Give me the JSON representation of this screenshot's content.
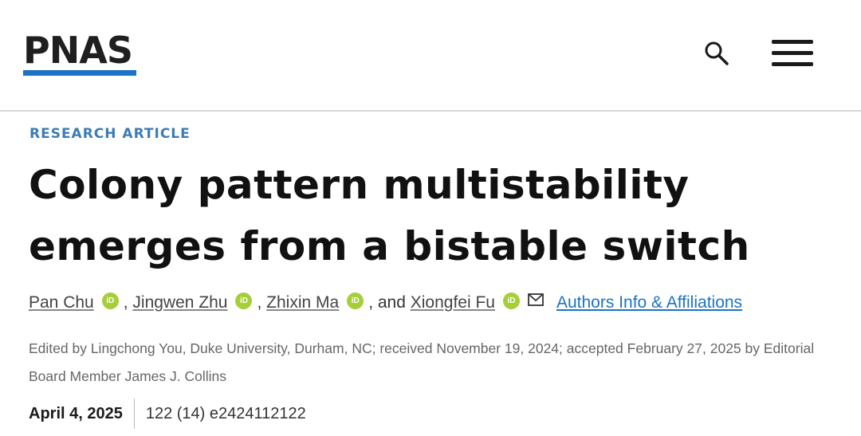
{
  "header": {
    "logo": "PNAS",
    "brand_color": "#1a73c8",
    "search_icon": "search-icon",
    "menu_icon": "hamburger-menu-icon"
  },
  "article": {
    "type_label": "RESEARCH ARTICLE",
    "title": "Colony pattern multistability emerges from a bistable switch",
    "authors": [
      {
        "name": "Pan Chu",
        "sep": ", "
      },
      {
        "name": "Jingwen Zhu",
        "sep": ", "
      },
      {
        "name": "Zhixin Ma",
        "sep": ", and "
      },
      {
        "name": "Xiongfei Fu",
        "sep": ""
      }
    ],
    "orcid_label": "iD",
    "affiliations_link": "Authors Info & Affiliations",
    "edited": "Edited by Lingchong You, Duke University, Durham, NC; received November 19, 2024; accepted February 27, 2025 by Editorial Board Member James J. Collins",
    "date": "April 4, 2025",
    "citation": "122 (14) e2424112122"
  }
}
